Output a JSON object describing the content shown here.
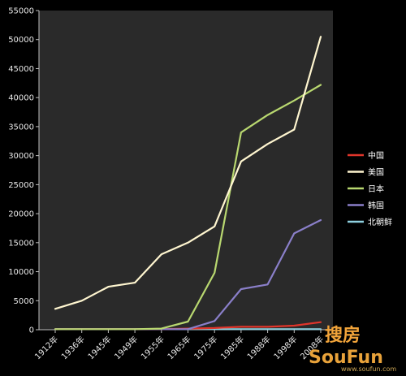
{
  "chart_data": {
    "type": "line",
    "title": "",
    "xlabel": "",
    "ylabel": "",
    "ylim": [
      0,
      55000
    ],
    "yticks": [
      0,
      5000,
      10000,
      15000,
      20000,
      25000,
      30000,
      35000,
      40000,
      45000,
      50000,
      55000
    ],
    "grid": false,
    "legend_position": "right",
    "categories": [
      "1912年",
      "1936年",
      "1945年",
      "1949年",
      "1955年",
      "1965年",
      "1975年",
      "1985年",
      "1988年",
      "1998年",
      "2008年"
    ],
    "series": [
      {
        "name": "中国",
        "color": "#e0352b",
        "values": [
          100,
          100,
          100,
          100,
          100,
          200,
          300,
          500,
          500,
          700,
          1300
        ]
      },
      {
        "name": "美国",
        "color": "#fff6d0",
        "values": [
          3600,
          5000,
          7400,
          8100,
          13000,
          15000,
          17800,
          29000,
          32000,
          34500,
          50500
        ]
      },
      {
        "name": "日本",
        "color": "#b9d870",
        "values": [
          100,
          100,
          100,
          100,
          200,
          1400,
          9800,
          34000,
          37000,
          39500,
          42200
        ]
      },
      {
        "name": "韩国",
        "color": "#8a7fc9",
        "values": [
          100,
          100,
          100,
          100,
          100,
          100,
          1500,
          7000,
          7800,
          16600,
          18900
        ]
      },
      {
        "name": "北朝鲜",
        "color": "#8fd1e0",
        "values": [
          100,
          100,
          100,
          100,
          100,
          100,
          100,
          100,
          100,
          100,
          100
        ]
      }
    ]
  },
  "watermark": {
    "cn": "搜房",
    "en": "SouFun",
    "url": "www.soufun.com"
  }
}
